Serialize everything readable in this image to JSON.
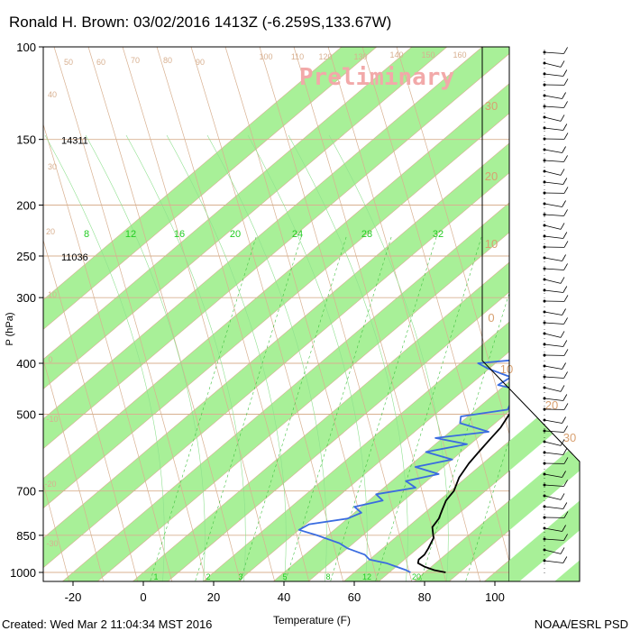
{
  "chart_data": {
    "type": "skew-t",
    "title": "Ronald H. Brown: 03/02/2016 1413Z (-6.259S,133.67W)",
    "watermark": "Preliminary",
    "xlabel": "Temperature (F)",
    "ylabel": "P (hPa)",
    "footer_left": "Created: Wed Mar  2 11:04:34 MST 2016",
    "footer_right": "NOAA/ESRL PSD",
    "x_ticks": [
      "-20",
      "0",
      "20",
      "40",
      "60",
      "80",
      "100"
    ],
    "x_tick_values": [
      -20,
      0,
      20,
      40,
      60,
      80,
      100
    ],
    "xlim": [
      -28,
      100
    ],
    "y_ticks": [
      "100",
      "150",
      "200",
      "250",
      "300",
      "400",
      "500",
      "700",
      "850",
      "1000"
    ],
    "y_tick_values": [
      100,
      150,
      200,
      250,
      300,
      400,
      500,
      700,
      850,
      1000
    ],
    "ylim": [
      100,
      1000
    ],
    "y_scale": "log",
    "heights": [
      {
        "pressure": 150,
        "label": "14311"
      },
      {
        "pressure": 250,
        "label": "11036"
      }
    ],
    "mixing_ratio_labels": [
      "8",
      "12",
      "16",
      "20",
      "24",
      "28",
      "32"
    ],
    "mixing_ratio_bottom_labels": [
      "1",
      "2",
      "3",
      "5",
      "8",
      "12",
      "20"
    ],
    "isotherm_band_labels": [
      "30",
      "20",
      "10",
      "0",
      "10",
      "20",
      "30"
    ],
    "theta_labels": [
      "50",
      "60",
      "70",
      "80",
      "90",
      "100",
      "110",
      "120",
      "130",
      "140",
      "150",
      "160"
    ],
    "wet_bulb_labels": [
      "40",
      "30",
      "20",
      "10",
      "0",
      "-10",
      "-20",
      "-30"
    ],
    "series": [
      {
        "name": "Temperature",
        "points": [
          [
            1000,
            86
          ],
          [
            990,
            82
          ],
          [
            975,
            78
          ],
          [
            960,
            75
          ],
          [
            945,
            74
          ],
          [
            925,
            74
          ],
          [
            900,
            73
          ],
          [
            880,
            72
          ],
          [
            860,
            71
          ],
          [
            850,
            70
          ],
          [
            820,
            67
          ],
          [
            790,
            66
          ],
          [
            760,
            64
          ],
          [
            730,
            62
          ],
          [
            700,
            61
          ],
          [
            660,
            58
          ],
          [
            620,
            56
          ],
          [
            590,
            55
          ],
          [
            560,
            54
          ],
          [
            530,
            53
          ],
          [
            500,
            51
          ],
          [
            470,
            49
          ],
          [
            440,
            48
          ],
          [
            420,
            46
          ],
          [
            400,
            45
          ],
          [
            380,
            43
          ],
          [
            360,
            41
          ],
          [
            340,
            38
          ],
          [
            320,
            35
          ],
          [
            300,
            33
          ],
          [
            280,
            30
          ],
          [
            260,
            27
          ],
          [
            240,
            24
          ],
          [
            220,
            21
          ],
          [
            200,
            18
          ],
          [
            185,
            15
          ],
          [
            170,
            12
          ],
          [
            160,
            10
          ],
          [
            150,
            8
          ],
          [
            140,
            7
          ],
          [
            130,
            6
          ],
          [
            120,
            6
          ],
          [
            110,
            6
          ],
          [
            100,
            6
          ]
        ]
      },
      {
        "name": "Dewpoint",
        "points": [
          [
            1000,
            76
          ],
          [
            990,
            74
          ],
          [
            975,
            70
          ],
          [
            960,
            66
          ],
          [
            945,
            60
          ],
          [
            925,
            57
          ],
          [
            900,
            50
          ],
          [
            880,
            46
          ],
          [
            860,
            40
          ],
          [
            850,
            37
          ],
          [
            830,
            30
          ],
          [
            810,
            31
          ],
          [
            790,
            40
          ],
          [
            770,
            42
          ],
          [
            750,
            38
          ],
          [
            730,
            44
          ],
          [
            710,
            40
          ],
          [
            690,
            49
          ],
          [
            670,
            44
          ],
          [
            650,
            51
          ],
          [
            630,
            42
          ],
          [
            610,
            50
          ],
          [
            590,
            40
          ],
          [
            570,
            49
          ],
          [
            555,
            38
          ],
          [
            540,
            51
          ],
          [
            520,
            40
          ],
          [
            505,
            38
          ],
          [
            490,
            49
          ],
          [
            470,
            47
          ],
          [
            450,
            46
          ],
          [
            440,
            38
          ],
          [
            425,
            39
          ],
          [
            410,
            30
          ],
          [
            400,
            25
          ],
          [
            395,
            33
          ],
          [
            385,
            40
          ],
          [
            370,
            41
          ],
          [
            350,
            38
          ],
          [
            330,
            36
          ],
          [
            310,
            34
          ],
          [
            300,
            31
          ],
          [
            285,
            30
          ],
          [
            270,
            19
          ],
          [
            260,
            13
          ],
          [
            250,
            12
          ],
          [
            240,
            12
          ],
          [
            225,
            14
          ],
          [
            210,
            13
          ],
          [
            200,
            12
          ],
          [
            190,
            11
          ],
          [
            180,
            12
          ],
          [
            170,
            13
          ],
          [
            165,
            11
          ],
          [
            160,
            9
          ],
          [
            150,
            5
          ],
          [
            140,
            -2
          ],
          [
            130,
            -1
          ],
          [
            120,
            -4
          ],
          [
            115,
            -3
          ],
          [
            110,
            -4
          ],
          [
            100,
            -5
          ]
        ]
      }
    ],
    "grid": true,
    "legend": "none"
  }
}
